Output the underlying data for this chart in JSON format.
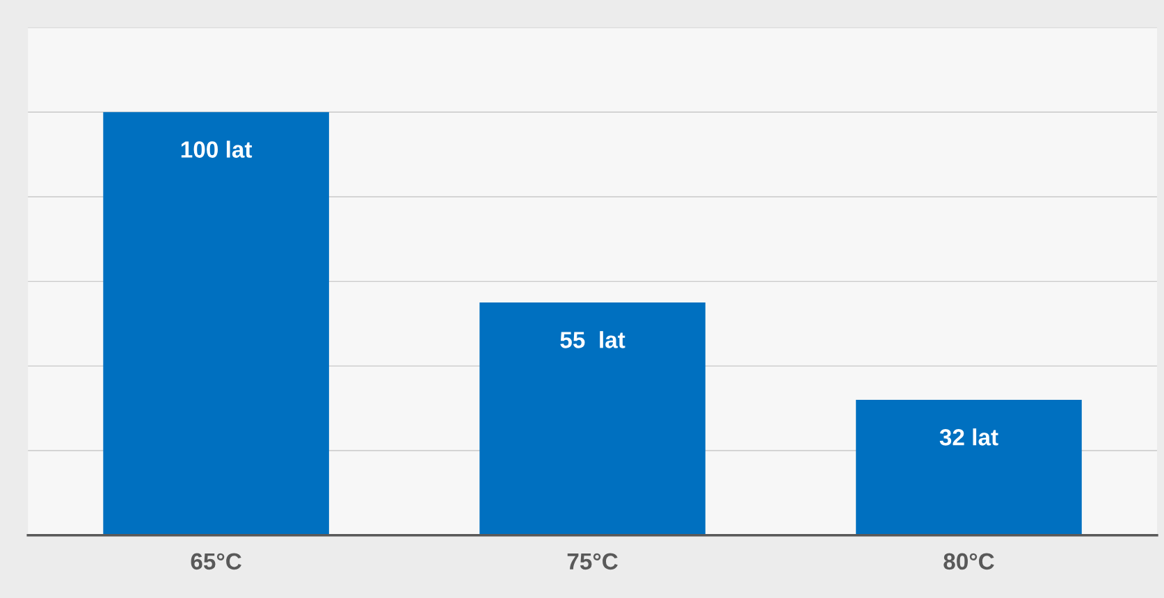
{
  "chart_data": {
    "type": "bar",
    "categories": [
      "65°C",
      "75°C",
      "80°C"
    ],
    "values": [
      100,
      55,
      32
    ],
    "value_labels": [
      "100 lat",
      "55  lat",
      "32 lat"
    ],
    "color": "#0070c0",
    "ylim": [
      0,
      120
    ],
    "yticks": [
      {
        "value": 0,
        "label": null
      },
      {
        "value": 20,
        "label": null
      },
      {
        "value": 40,
        "label": null
      },
      {
        "value": 60,
        "label": null
      },
      {
        "value": 80,
        "label": null
      },
      {
        "value": 100,
        "label": null
      },
      {
        "value": 120,
        "label": null
      }
    ],
    "grid": "y",
    "tick_labels": "x"
  }
}
